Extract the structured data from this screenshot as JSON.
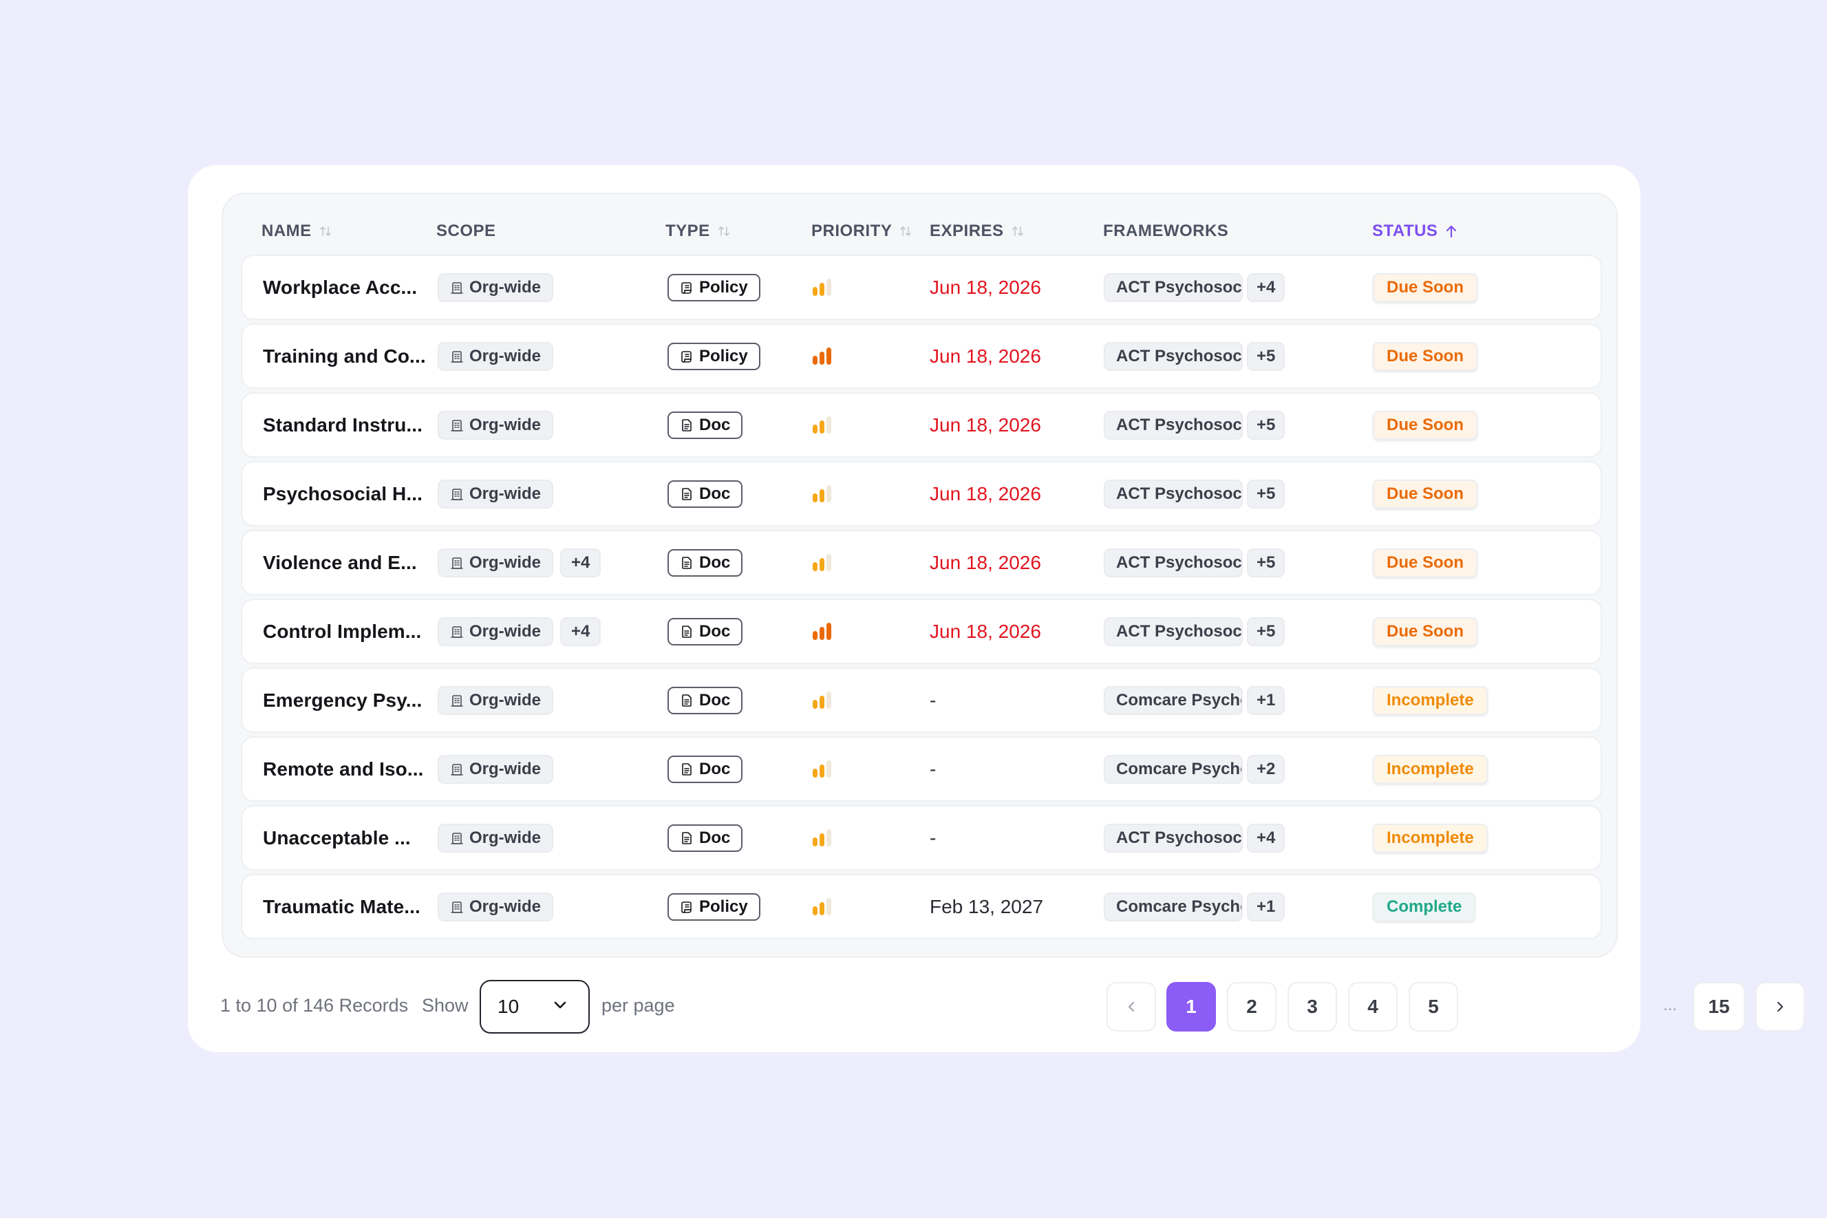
{
  "columns": {
    "name": "NAME",
    "scope": "SCOPE",
    "type": "TYPE",
    "priority": "PRIORITY",
    "expires": "EXPIRES",
    "frameworks": "FRAMEWORKS",
    "status": "STATUS"
  },
  "colors": {
    "accent": "#8b5cf6",
    "due_date": "#e2141f",
    "due_soon": "#ea6a07",
    "incomplete": "#f08a07",
    "complete": "#20a88a"
  },
  "rows": [
    {
      "name": "Workplace Acc...",
      "scope": "Org-wide",
      "scope_extra": "",
      "type": "Policy",
      "type_icon": "policy-icon",
      "priority_level": "medium",
      "expires": "Jun 18, 2026",
      "framework": "ACT Psychosocial",
      "framework_extra": "+4",
      "status": "Due Soon"
    },
    {
      "name": "Training and Co...",
      "scope": "Org-wide",
      "scope_extra": "",
      "type": "Policy",
      "type_icon": "policy-icon",
      "priority_level": "high",
      "expires": "Jun 18, 2026",
      "framework": "ACT Psychosocial",
      "framework_extra": "+5",
      "status": "Due Soon"
    },
    {
      "name": "Standard Instru...",
      "scope": "Org-wide",
      "scope_extra": "",
      "type": "Doc",
      "type_icon": "doc-icon",
      "priority_level": "medium",
      "expires": "Jun 18, 2026",
      "framework": "ACT Psychosocial",
      "framework_extra": "+5",
      "status": "Due Soon"
    },
    {
      "name": "Psychosocial H...",
      "scope": "Org-wide",
      "scope_extra": "",
      "type": "Doc",
      "type_icon": "doc-icon",
      "priority_level": "medium",
      "expires": "Jun 18, 2026",
      "framework": "ACT Psychosocial",
      "framework_extra": "+5",
      "status": "Due Soon"
    },
    {
      "name": "Violence and E...",
      "scope": "Org-wide",
      "scope_extra": "+4",
      "type": "Doc",
      "type_icon": "doc-icon",
      "priority_level": "medium",
      "expires": "Jun 18, 2026",
      "framework": "ACT Psychosocial",
      "framework_extra": "+5",
      "status": "Due Soon"
    },
    {
      "name": "Control Implem...",
      "scope": "Org-wide",
      "scope_extra": "+4",
      "type": "Doc",
      "type_icon": "doc-icon",
      "priority_level": "high",
      "expires": "Jun 18, 2026",
      "framework": "ACT Psychosocial",
      "framework_extra": "+5",
      "status": "Due Soon"
    },
    {
      "name": "Emergency Psy...",
      "scope": "Org-wide",
      "scope_extra": "",
      "type": "Doc",
      "type_icon": "doc-icon",
      "priority_level": "medium",
      "expires": "-",
      "framework": "Comcare Psychosocial",
      "framework_extra": "+1",
      "status": "Incomplete"
    },
    {
      "name": "Remote and Iso...",
      "scope": "Org-wide",
      "scope_extra": "",
      "type": "Doc",
      "type_icon": "doc-icon",
      "priority_level": "medium",
      "expires": "-",
      "framework": "Comcare Psychosocial",
      "framework_extra": "+2",
      "status": "Incomplete"
    },
    {
      "name": "Unacceptable ...",
      "scope": "Org-wide",
      "scope_extra": "",
      "type": "Doc",
      "type_icon": "doc-icon",
      "priority_level": "medium",
      "expires": "-",
      "framework": "ACT Psychosocial",
      "framework_extra": "+4",
      "status": "Incomplete"
    },
    {
      "name": "Traumatic Mate...",
      "scope": "Org-wide",
      "scope_extra": "",
      "type": "Policy",
      "type_icon": "policy-icon",
      "priority_level": "medium",
      "expires": "Feb 13, 2027",
      "framework": "Comcare Psychosocial",
      "framework_extra": "+1",
      "status": "Complete"
    }
  ],
  "footer": {
    "records": "1 to 10 of 146 Records",
    "show_label": "Show",
    "per_page_value": "10",
    "per_page_label": "per page"
  },
  "pagination": {
    "pages": [
      "1",
      "2",
      "3",
      "4",
      "5"
    ],
    "ellipsis": "...",
    "last": "15",
    "current": "1"
  }
}
